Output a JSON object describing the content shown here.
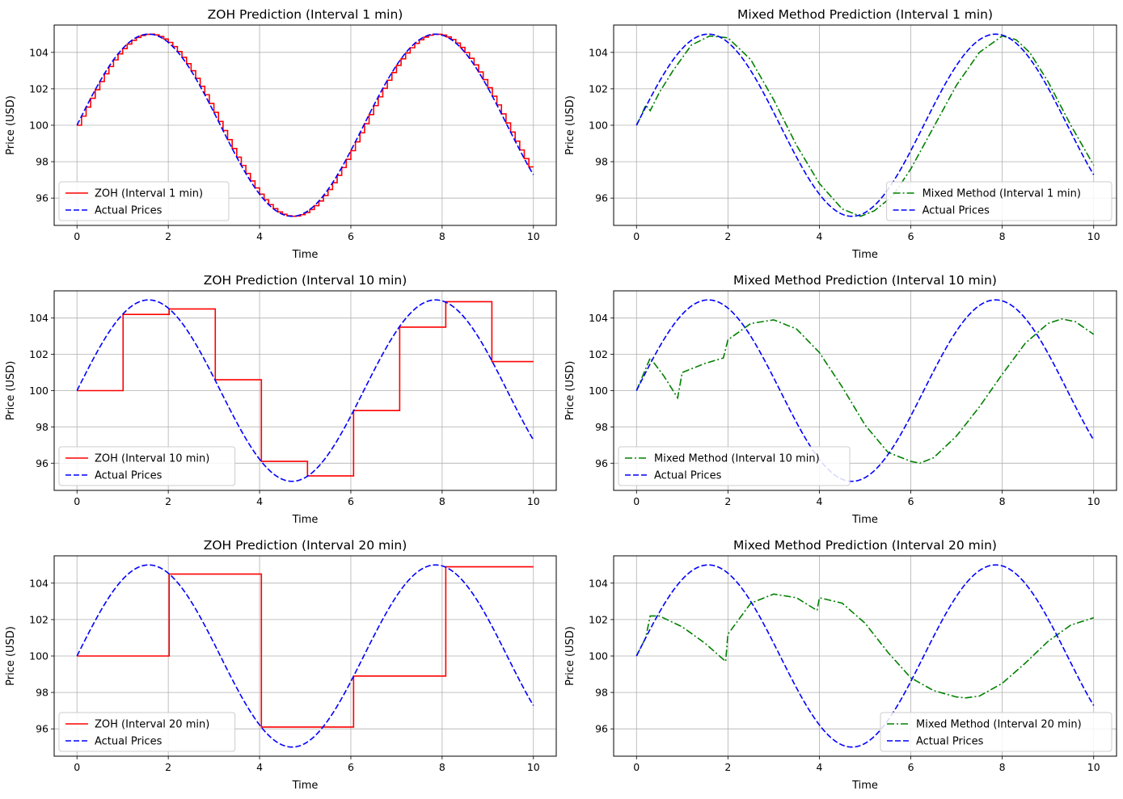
{
  "colors": {
    "zoh": "#ff0000",
    "mixed": "#008000",
    "actual": "#0000ff",
    "grid": "#b0b0b0"
  },
  "chart_data": [
    {
      "type": "line",
      "title": "ZOH Prediction (Interval 1 min)",
      "xlabel": "Time",
      "ylabel": "Price (USD)",
      "xlim": [
        -0.5,
        10.5
      ],
      "ylim": [
        94.5,
        105.5
      ],
      "xticks": [
        "0",
        "2",
        "4",
        "6",
        "8",
        "10"
      ],
      "yticks": [
        "96",
        "98",
        "100",
        "102",
        "104"
      ],
      "grid": true,
      "legend_position": "lower left",
      "actual_formula": "100 + 5*sin(t)",
      "x_range": [
        0,
        10
      ],
      "series": [
        {
          "name": "ZOH (Interval 1 min)",
          "style": "step",
          "color": "#ff0000",
          "hold_interval": 0.1
        },
        {
          "name": "Actual Prices",
          "style": "dashed",
          "color": "#0000ff"
        }
      ]
    },
    {
      "type": "line",
      "title": "Mixed Method Prediction (Interval 1 min)",
      "xlabel": "Time",
      "ylabel": "Price (USD)",
      "xlim": [
        -0.5,
        10.5
      ],
      "ylim": [
        94.5,
        105.5
      ],
      "xticks": [
        "0",
        "2",
        "4",
        "6",
        "8",
        "10"
      ],
      "yticks": [
        "96",
        "98",
        "100",
        "102",
        "104"
      ],
      "grid": true,
      "legend_position": "lower right",
      "actual_formula": "100 + 5*sin(t)",
      "x_range": [
        0,
        10
      ],
      "series": [
        {
          "name": "Mixed Method (Interval 1 min)",
          "style": "dashdot",
          "color": "#008000",
          "x": [
            0,
            0.1,
            0.2,
            0.3,
            0.5,
            0.8,
            1.2,
            1.6,
            2.0,
            2.5,
            3.0,
            3.5,
            4.0,
            4.5,
            4.9,
            5.2,
            5.6,
            6.0,
            6.5,
            7.0,
            7.5,
            8.0,
            8.3,
            8.6,
            9.0,
            9.5,
            10.0
          ],
          "y": [
            100,
            100.5,
            101.1,
            100.8,
            101.8,
            103.0,
            104.4,
            104.9,
            104.8,
            103.6,
            101.4,
            98.9,
            96.8,
            95.4,
            95.0,
            95.3,
            96.1,
            97.6,
            99.9,
            102.2,
            104.0,
            104.9,
            104.7,
            104.0,
            102.4,
            100.0,
            97.8
          ]
        },
        {
          "name": "Actual Prices",
          "style": "dashed",
          "color": "#0000ff"
        }
      ]
    },
    {
      "type": "line",
      "title": "ZOH Prediction (Interval 10 min)",
      "xlabel": "Time",
      "ylabel": "Price (USD)",
      "xlim": [
        -0.5,
        10.5
      ],
      "ylim": [
        94.5,
        105.5
      ],
      "xticks": [
        "0",
        "2",
        "4",
        "6",
        "8",
        "10"
      ],
      "yticks": [
        "96",
        "98",
        "100",
        "102",
        "104"
      ],
      "grid": true,
      "legend_position": "lower left",
      "actual_formula": "100 + 5*sin(t)",
      "x_range": [
        0,
        10
      ],
      "series": [
        {
          "name": "ZOH (Interval 10 min)",
          "style": "step",
          "color": "#ff0000",
          "x": [
            0,
            1.01,
            2.02,
            3.03,
            4.04,
            5.05,
            6.06,
            7.07,
            8.08,
            9.09,
            10.0
          ],
          "y": [
            100,
            104.2,
            104.5,
            100.6,
            96.1,
            95.3,
            98.9,
            103.5,
            104.9,
            101.6,
            101.6
          ]
        },
        {
          "name": "Actual Prices",
          "style": "dashed",
          "color": "#0000ff"
        }
      ]
    },
    {
      "type": "line",
      "title": "Mixed Method Prediction (Interval 10 min)",
      "xlabel": "Time",
      "ylabel": "Price (USD)",
      "xlim": [
        -0.5,
        10.5
      ],
      "ylim": [
        94.5,
        105.5
      ],
      "xticks": [
        "0",
        "2",
        "4",
        "6",
        "8",
        "10"
      ],
      "yticks": [
        "96",
        "98",
        "100",
        "102",
        "104"
      ],
      "grid": true,
      "legend_position": "lower left",
      "actual_formula": "100 + 5*sin(t)",
      "x_range": [
        0,
        10
      ],
      "series": [
        {
          "name": "Mixed Method (Interval 10 min)",
          "style": "dashdot",
          "color": "#008000",
          "x": [
            0,
            0.3,
            0.6,
            0.9,
            1.0,
            1.5,
            1.9,
            2.0,
            2.5,
            3.0,
            3.5,
            4.0,
            4.5,
            5.0,
            5.5,
            6.0,
            6.2,
            6.5,
            7.0,
            7.5,
            8.0,
            8.5,
            9.0,
            9.3,
            9.6,
            10.0
          ],
          "y": [
            100,
            101.8,
            100.8,
            99.6,
            101.0,
            101.5,
            101.8,
            102.8,
            103.7,
            103.9,
            103.4,
            102.1,
            100.2,
            98.1,
            96.6,
            96.1,
            96.0,
            96.3,
            97.5,
            99.1,
            100.9,
            102.6,
            103.7,
            103.95,
            103.8,
            103.1
          ]
        },
        {
          "name": "Actual Prices",
          "style": "dashed",
          "color": "#0000ff"
        }
      ]
    },
    {
      "type": "line",
      "title": "ZOH Prediction (Interval 20 min)",
      "xlabel": "Time",
      "ylabel": "Price (USD)",
      "xlim": [
        -0.5,
        10.5
      ],
      "ylim": [
        94.5,
        105.5
      ],
      "xticks": [
        "0",
        "2",
        "4",
        "6",
        "8",
        "10"
      ],
      "yticks": [
        "96",
        "98",
        "100",
        "102",
        "104"
      ],
      "grid": true,
      "legend_position": "lower left",
      "actual_formula": "100 + 5*sin(t)",
      "x_range": [
        0,
        10
      ],
      "series": [
        {
          "name": "ZOH (Interval 20 min)",
          "style": "step",
          "color": "#ff0000",
          "x": [
            0,
            2.02,
            4.04,
            6.06,
            8.08,
            10.0
          ],
          "y": [
            100,
            104.5,
            96.1,
            98.9,
            104.9,
            104.9
          ]
        },
        {
          "name": "Actual Prices",
          "style": "dashed",
          "color": "#0000ff"
        }
      ]
    },
    {
      "type": "line",
      "title": "Mixed Method Prediction (Interval 20 min)",
      "xlabel": "Time",
      "ylabel": "Price (USD)",
      "xlim": [
        -0.5,
        10.5
      ],
      "ylim": [
        94.5,
        105.5
      ],
      "xticks": [
        "0",
        "2",
        "4",
        "6",
        "8",
        "10"
      ],
      "yticks": [
        "96",
        "98",
        "100",
        "102",
        "104"
      ],
      "grid": true,
      "legend_position": "lower right",
      "actual_formula": "100 + 5*sin(t)",
      "x_range": [
        0,
        10
      ],
      "series": [
        {
          "name": "Mixed Method (Interval 20 min)",
          "style": "dashdot",
          "color": "#008000",
          "x": [
            0,
            0.2,
            0.3,
            0.5,
            1.0,
            1.5,
            1.95,
            2.0,
            2.5,
            3.0,
            3.5,
            3.95,
            4.0,
            4.5,
            5.0,
            5.5,
            6.0,
            6.5,
            7.0,
            7.2,
            7.5,
            8.0,
            8.5,
            9.0,
            9.5,
            10.0
          ],
          "y": [
            100,
            101.0,
            102.2,
            102.2,
            101.6,
            100.7,
            99.7,
            101.2,
            102.9,
            103.4,
            103.2,
            102.5,
            103.2,
            102.9,
            101.8,
            100.2,
            98.8,
            98.1,
            97.75,
            97.7,
            97.8,
            98.5,
            99.6,
            100.8,
            101.7,
            102.1
          ]
        },
        {
          "name": "Actual Prices",
          "style": "dashed",
          "color": "#0000ff"
        }
      ]
    }
  ]
}
